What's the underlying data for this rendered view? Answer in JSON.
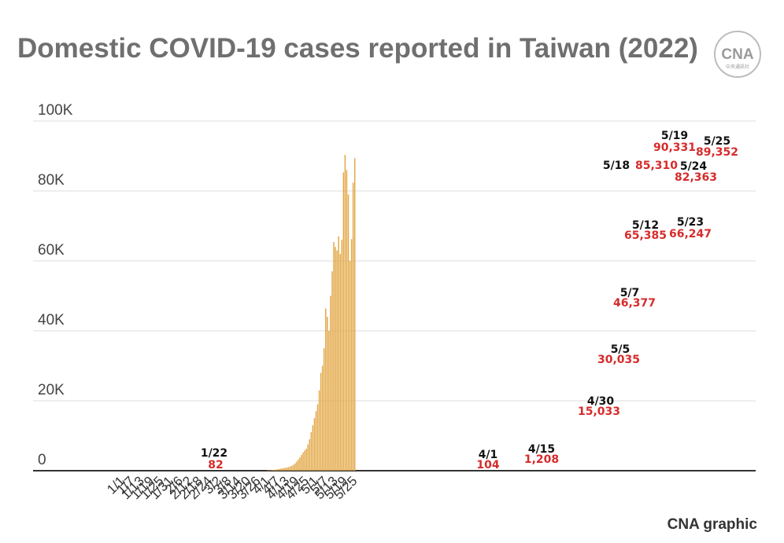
{
  "title": "Domestic COVID-19 cases reported in Taiwan (2022)",
  "credit": "CNA graphic",
  "logo": {
    "text": "CNA",
    "subtext": "中央通訊社"
  },
  "colors": {
    "bar": "#e3a848",
    "grid": "#dddddd",
    "axis": "#333333",
    "date_label": "#111111",
    "value_label": "#d62b2b",
    "title": "#6f6f6f"
  },
  "chart_data": {
    "type": "bar",
    "title": "Domestic COVID-19 cases reported in Taiwan (2022)",
    "xlabel": "",
    "ylabel": "",
    "ylim": [
      0,
      100000
    ],
    "grid": true,
    "yticks": [
      {
        "value": 0,
        "label": "0"
      },
      {
        "value": 20000,
        "label": "20K"
      },
      {
        "value": 40000,
        "label": "40K"
      },
      {
        "value": 60000,
        "label": "60K"
      },
      {
        "value": 80000,
        "label": "80K"
      },
      {
        "value": 100000,
        "label": "100K"
      }
    ],
    "xtick_labels": [
      "1/1",
      "1/7",
      "1/13",
      "1/19",
      "1/25",
      "1/31",
      "2/6",
      "2/12",
      "2/18",
      "2/24",
      "3/2",
      "3/8",
      "3/14",
      "3/20",
      "3/26",
      "4/1",
      "4/7",
      "4/13",
      "4/19",
      "4/25",
      "5/1",
      "5/7",
      "5/13",
      "5/19",
      "5/25"
    ],
    "categories": [
      "4/1",
      "4/2",
      "4/3",
      "4/4",
      "4/5",
      "4/6",
      "4/7",
      "4/8",
      "4/9",
      "4/10",
      "4/11",
      "4/12",
      "4/13",
      "4/14",
      "4/15",
      "4/16",
      "4/17",
      "4/18",
      "4/19",
      "4/20",
      "4/21",
      "4/22",
      "4/23",
      "4/24",
      "4/25",
      "4/26",
      "4/27",
      "4/28",
      "4/29",
      "4/30",
      "5/1",
      "5/2",
      "5/3",
      "5/4",
      "5/5",
      "5/6",
      "5/7",
      "5/8",
      "5/9",
      "5/10",
      "5/11",
      "5/12",
      "5/13",
      "5/14",
      "5/15",
      "5/16",
      "5/17",
      "5/18",
      "5/19",
      "5/20",
      "5/21",
      "5/22",
      "5/23",
      "5/24",
      "5/25"
    ],
    "values": [
      104,
      120,
      150,
      190,
      240,
      300,
      380,
      470,
      560,
      650,
      750,
      850,
      950,
      1050,
      1208,
      1400,
      1700,
      2100,
      2600,
      3200,
      3800,
      4500,
      5200,
      5800,
      6300,
      7500,
      9000,
      11000,
      13000,
      15033,
      17000,
      19000,
      23000,
      28000,
      30035,
      35000,
      46377,
      44000,
      40000,
      50000,
      57000,
      65385,
      64000,
      63000,
      67000,
      62000,
      66000,
      85310,
      90331,
      86000,
      79000,
      60000,
      66247,
      82363,
      89352
    ],
    "annotations": [
      {
        "date": "1/22",
        "value": "82"
      },
      {
        "date": "4/1",
        "value": "104"
      },
      {
        "date": "4/15",
        "value": "1,208"
      },
      {
        "date": "4/30",
        "value": "15,033"
      },
      {
        "date": "5/5",
        "value": "30,035"
      },
      {
        "date": "5/7",
        "value": "46,377"
      },
      {
        "date": "5/12",
        "value": "65,385"
      },
      {
        "date": "5/18",
        "value": "85,310"
      },
      {
        "date": "5/19",
        "value": "90,331"
      },
      {
        "date": "5/23",
        "value": "66,247"
      },
      {
        "date": "5/24",
        "value": "82,363"
      },
      {
        "date": "5/25",
        "value": "89,352"
      }
    ]
  }
}
